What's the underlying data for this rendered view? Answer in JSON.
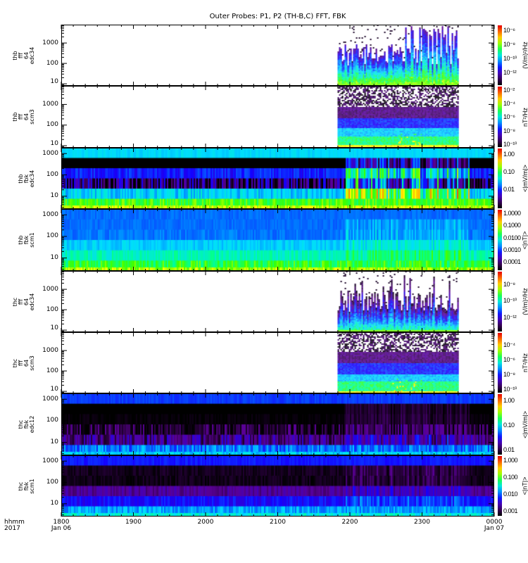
{
  "title": "Outer Probes: P1, P2 (TH-B,C) FFT, FBK",
  "chart_data": {
    "type": "heatmap",
    "title": "Outer Probes: P1, P2 (TH-B,C) FFT, FBK",
    "x_axis": {
      "label_line1": "hhmm",
      "label_line2": "2017",
      "range_hhmm": [
        "1800",
        "0000"
      ],
      "ticks": [
        {
          "label": "1800",
          "sub": "Jan 06",
          "hours": 0
        },
        {
          "label": "1900",
          "sub": "",
          "hours": 1
        },
        {
          "label": "2000",
          "sub": "",
          "hours": 2
        },
        {
          "label": "2100",
          "sub": "",
          "hours": 3
        },
        {
          "label": "2200",
          "sub": "",
          "hours": 4
        },
        {
          "label": "2300",
          "sub": "",
          "hours": 5
        },
        {
          "label": "0000",
          "sub": "Jan 07",
          "hours": 6
        }
      ]
    },
    "panels": [
      {
        "name": "thb fff 64 edc34",
        "label_lines": [
          "thb",
          "fff",
          "64",
          "edc34"
        ],
        "kind": "fff_e",
        "y_log_range": [
          0.9,
          3.9
        ],
        "y_ticks": [
          "10",
          "100",
          "1000"
        ],
        "data_hours": [
          3.83,
          5.5
        ],
        "colorbar": {
          "unit": "(V/m)²/Hz",
          "log_range": [
            -13.9,
            -5.2
          ],
          "ticks": [
            {
              "label": "10⁻⁶",
              "log": -6
            },
            {
              "label": "10⁻⁸",
              "log": -8
            },
            {
              "label": "10⁻¹⁰",
              "log": -10
            },
            {
              "label": "10⁻¹²",
              "log": -12
            }
          ]
        }
      },
      {
        "name": "thb fff 64 scm3",
        "label_lines": [
          "thb",
          "fff",
          "64",
          "scm3"
        ],
        "kind": "fff_b",
        "y_log_range": [
          0.9,
          3.9
        ],
        "y_ticks": [
          "10",
          "100",
          "1000"
        ],
        "data_hours": [
          3.83,
          5.5
        ],
        "colorbar": {
          "unit": "nT²/Hz",
          "log_range": [
            -10.5,
            -1.3
          ],
          "ticks": [
            {
              "label": "10⁻²",
              "log": -2
            },
            {
              "label": "10⁻⁴",
              "log": -4
            },
            {
              "label": "10⁻⁶",
              "log": -6
            },
            {
              "label": "10⁻⁸",
              "log": -8
            },
            {
              "label": "10⁻¹⁰",
              "log": -10
            }
          ]
        }
      },
      {
        "name": "thb fbk edc34",
        "label_lines": [
          "thb",
          "fbk",
          "edc34"
        ],
        "kind": "fbk_thb_e",
        "y_log_range": [
          0.4,
          3.27
        ],
        "y_ticks": [
          "10",
          "100",
          "1000"
        ],
        "data_hours": [
          0,
          6
        ],
        "colorbar": {
          "unit": "<|mV/m|>",
          "log_range": [
            -3.1,
            0.36
          ],
          "ticks": [
            {
              "label": "1.00",
              "log": 0
            },
            {
              "label": "0.10",
              "log": -1
            },
            {
              "label": "0.01",
              "log": -2
            }
          ]
        }
      },
      {
        "name": "thb fbk scm1",
        "label_lines": [
          "thb",
          "fbk",
          "scm1"
        ],
        "kind": "fbk_thb_b",
        "y_log_range": [
          0.4,
          3.27
        ],
        "y_ticks": [
          "10",
          "100",
          "1000"
        ],
        "data_hours": [
          0,
          6
        ],
        "colorbar": {
          "unit": "<|nT|>",
          "log_range": [
            -4.75,
            0.4
          ],
          "ticks": [
            {
              "label": "1.0000",
              "log": 0
            },
            {
              "label": "0.1000",
              "log": -1
            },
            {
              "label": "0.0100",
              "log": -2
            },
            {
              "label": "0.0010",
              "log": -3
            },
            {
              "label": "0.0001",
              "log": -4
            }
          ]
        }
      },
      {
        "name": "thc fff 64 edc34",
        "label_lines": [
          "thc",
          "fff",
          "64",
          "edc34"
        ],
        "kind": "fff_e2",
        "y_log_range": [
          0.9,
          3.9
        ],
        "y_ticks": [
          "10",
          "100",
          "1000"
        ],
        "data_hours": [
          3.83,
          5.5
        ],
        "colorbar": {
          "unit": "(V/m)²/Hz",
          "log_range": [
            -13.8,
            -6.3
          ],
          "ticks": [
            {
              "label": "10⁻⁸",
              "log": -8
            },
            {
              "label": "10⁻¹⁰",
              "log": -10
            },
            {
              "label": "10⁻¹²",
              "log": -12
            }
          ]
        }
      },
      {
        "name": "thc fff 64 scm3",
        "label_lines": [
          "thc",
          "fff",
          "64",
          "scm3"
        ],
        "kind": "fff_b",
        "y_log_range": [
          0.9,
          3.9
        ],
        "y_ticks": [
          "10",
          "100",
          "1000"
        ],
        "data_hours": [
          3.83,
          5.5
        ],
        "colorbar": {
          "unit": "nT²/Hz",
          "log_range": [
            -10.5,
            -2.3
          ],
          "ticks": [
            {
              "label": "10⁻⁴",
              "log": -4
            },
            {
              "label": "10⁻⁶",
              "log": -6
            },
            {
              "label": "10⁻⁸",
              "log": -8
            },
            {
              "label": "10⁻¹⁰",
              "log": -10
            }
          ]
        }
      },
      {
        "name": "thc fbk edc12",
        "label_lines": [
          "thc",
          "fbk",
          "edc12"
        ],
        "kind": "fbk_thc_e",
        "y_log_range": [
          0.4,
          3.27
        ],
        "y_ticks": [
          "10",
          "100",
          "1000"
        ],
        "data_hours": [
          0,
          6
        ],
        "colorbar": {
          "unit": "<|mV/m|>",
          "log_range": [
            -2.2,
            0.29
          ],
          "ticks": [
            {
              "label": "1.00",
              "log": 0
            },
            {
              "label": "0.10",
              "log": -1
            },
            {
              "label": "0.01",
              "log": -2
            }
          ]
        }
      },
      {
        "name": "thc fbk scm1",
        "label_lines": [
          "thc",
          "fbk",
          "scm1"
        ],
        "kind": "fbk_thc_b",
        "y_log_range": [
          0.4,
          3.27
        ],
        "y_ticks": [
          "10",
          "100",
          "1000"
        ],
        "data_hours": [
          0,
          6
        ],
        "colorbar": {
          "unit": "<|nT|>",
          "log_range": [
            -3.3,
            0.33
          ],
          "ticks": [
            {
              "label": "1.000",
              "log": 0
            },
            {
              "label": "0.100",
              "log": -1
            },
            {
              "label": "0.010",
              "log": -2
            },
            {
              "label": "0.001",
              "log": -3
            }
          ]
        }
      }
    ]
  }
}
